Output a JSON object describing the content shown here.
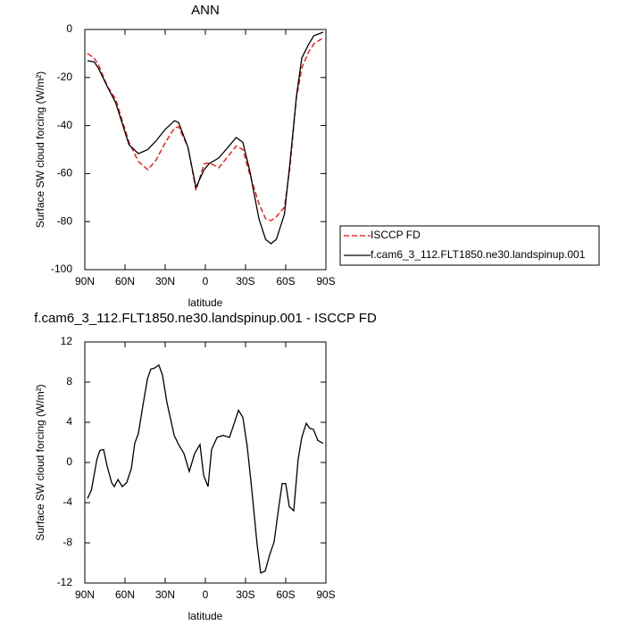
{
  "chart_data": [
    {
      "type": "line",
      "title": "ANN",
      "x_label": "latitude",
      "y_label": "Surface SW cloud forcing (W/m²)",
      "x": [
        88,
        83,
        80,
        73,
        67,
        57,
        50,
        43,
        37,
        30,
        23,
        20,
        13,
        7,
        1,
        -3,
        -10,
        -17,
        -23,
        -28,
        -33,
        -40,
        -45,
        -49,
        -53,
        -59,
        -63,
        -68,
        -72,
        -77,
        -81,
        -88
      ],
      "series": [
        {
          "name": "ISCCP FD",
          "color": "#ff0000",
          "line_style": "dashed",
          "values": [
            -10,
            -12,
            -14.5,
            -23.8,
            -29,
            -47,
            -55,
            -58.4,
            -54.6,
            -47.2,
            -41,
            -40.5,
            -49,
            -67,
            -56,
            -55.5,
            -57.6,
            -52.8,
            -48.5,
            -50,
            -60,
            -72.5,
            -78.8,
            -79.6,
            -78,
            -74,
            -58.4,
            -28.6,
            -16,
            -9.5,
            -6,
            -3.5
          ]
        },
        {
          "name": "f.cam6_3_112.FLT1850.ne30.landspinup.001",
          "color": "#000000",
          "line_style": "solid",
          "values": [
            -13,
            -13.5,
            -16,
            -24,
            -30.5,
            -48,
            -51.7,
            -50,
            -46.5,
            -41.6,
            -38,
            -38.7,
            -49,
            -65.8,
            -58.4,
            -55.8,
            -53.5,
            -49,
            -45,
            -47,
            -58.4,
            -78.8,
            -87.4,
            -89.2,
            -87.4,
            -77,
            -56.5,
            -27.9,
            -11.9,
            -6.3,
            -2.6,
            -1.1
          ]
        }
      ],
      "xlim": [
        90,
        -90
      ],
      "xticks": [
        {
          "value": 90,
          "label": "90N"
        },
        {
          "value": 60,
          "label": "60N"
        },
        {
          "value": 30,
          "label": "30N"
        },
        0,
        {
          "value": -30,
          "label": "30S"
        },
        {
          "value": -60,
          "label": "60S"
        },
        {
          "value": -90,
          "label": "90S"
        }
      ],
      "ylim": [
        -100,
        0
      ],
      "yticks": [
        -100,
        -80,
        -60,
        -40,
        -20,
        0
      ],
      "legend": "outside-right"
    },
    {
      "type": "line",
      "title": "f.cam6_3_112.FLT1850.ne30.landspinup.001 - ISCCP FD",
      "x_label": "latitude",
      "y_label": "Surface SW cloud forcing (W/m²)",
      "x": [
        88,
        85,
        81,
        78.7,
        76,
        73.3,
        70,
        68,
        65.3,
        62,
        58.7,
        55.3,
        52.7,
        50,
        46.7,
        43.3,
        40.7,
        38,
        34.7,
        32,
        28.7,
        23.3,
        20,
        16,
        12,
        8,
        4,
        1.3,
        -2,
        -4.7,
        -8.7,
        -13.3,
        -18,
        -21.3,
        -24.7,
        -28,
        -31.3,
        -34.7,
        -38.7,
        -41.3,
        -44.7,
        -48,
        -51.3,
        -54.7,
        -57.3,
        -60,
        -62.7,
        -66,
        -69.3,
        -72,
        -75.3,
        -78,
        -80.7,
        -84,
        -88
      ],
      "series": [
        {
          "color": "#000000",
          "line_style": "solid",
          "values": [
            -3.6,
            -2.7,
            0.3,
            1.2,
            1.3,
            -0.4,
            -2,
            -2.4,
            -1.7,
            -2.4,
            -2,
            -0.6,
            1.9,
            2.9,
            5.6,
            8.3,
            9.3,
            9.4,
            9.7,
            8.7,
            6,
            2.7,
            1.8,
            0.9,
            -0.9,
            0.9,
            1.8,
            -1.3,
            -2.4,
            1.3,
            2.5,
            2.7,
            2.5,
            3.8,
            5.2,
            4.5,
            1.6,
            -2.8,
            -8.2,
            -11,
            -10.8,
            -9.2,
            -7.9,
            -4.6,
            -2.1,
            -2.1,
            -4.4,
            -4.8,
            0.3,
            2.5,
            3.9,
            3.4,
            3.3,
            2.2,
            1.9
          ]
        }
      ],
      "xlim": [
        90,
        -90
      ],
      "xticks": [
        {
          "value": 90,
          "label": "90N"
        },
        {
          "value": 60,
          "label": "60N"
        },
        {
          "value": 30,
          "label": "30N"
        },
        0,
        {
          "value": -30,
          "label": "30S"
        },
        {
          "value": -60,
          "label": "60S"
        },
        {
          "value": -90,
          "label": "90S"
        }
      ],
      "ylim": [
        -12,
        12
      ],
      "yticks": [
        -12,
        -8,
        -4,
        0,
        4,
        8,
        12
      ]
    }
  ]
}
